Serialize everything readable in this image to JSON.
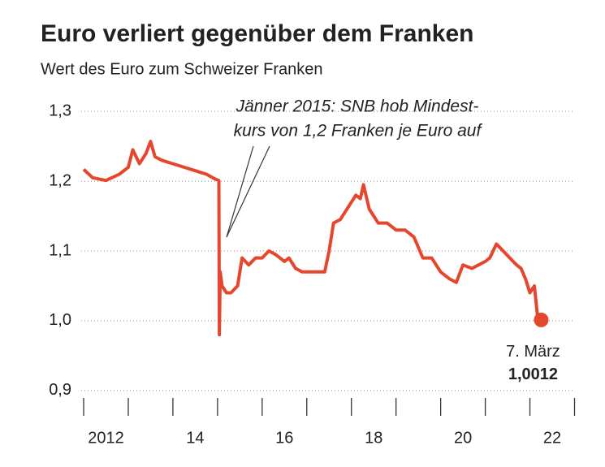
{
  "chart_data": {
    "type": "line",
    "title": "Euro verliert gegenüber dem Franken",
    "subtitle": "Wert des Euro zum Schweizer Franken",
    "annotation": [
      "Jänner 2015: SNB hob Mindest-",
      "kurs von 1,2 Franken je Euro auf"
    ],
    "end_label": "7. März",
    "end_value_label": "1,0012",
    "x": [
      2012.0,
      2012.2,
      2012.5,
      2012.8,
      2013.0,
      2013.1,
      2013.25,
      2013.4,
      2013.5,
      2013.6,
      2013.75,
      2014.0,
      2014.25,
      2014.5,
      2014.75,
      2014.95,
      2015.03,
      2015.04,
      2015.06,
      2015.1,
      2015.2,
      2015.3,
      2015.45,
      2015.55,
      2015.7,
      2015.85,
      2016.0,
      2016.15,
      2016.3,
      2016.5,
      2016.6,
      2016.75,
      2016.9,
      2017.0,
      2017.25,
      2017.4,
      2017.5,
      2017.6,
      2017.75,
      2017.9,
      2018.0,
      2018.1,
      2018.2,
      2018.27,
      2018.4,
      2018.5,
      2018.6,
      2018.8,
      2019.0,
      2019.2,
      2019.4,
      2019.6,
      2019.8,
      2020.0,
      2020.2,
      2020.35,
      2020.5,
      2020.7,
      2020.85,
      2021.0,
      2021.1,
      2021.25,
      2021.4,
      2021.55,
      2021.7,
      2021.8,
      2021.9,
      2022.0,
      2022.1,
      2022.18
    ],
    "series": [
      {
        "color": "#e4472d",
        "values": [
          1.217,
          1.205,
          1.201,
          1.21,
          1.22,
          1.245,
          1.225,
          1.24,
          1.257,
          1.235,
          1.23,
          1.225,
          1.22,
          1.215,
          1.21,
          1.203,
          1.201,
          0.98,
          1.07,
          1.05,
          1.04,
          1.04,
          1.05,
          1.09,
          1.08,
          1.09,
          1.09,
          1.1,
          1.095,
          1.085,
          1.09,
          1.075,
          1.07,
          1.07,
          1.07,
          1.07,
          1.1,
          1.14,
          1.145,
          1.16,
          1.17,
          1.18,
          1.175,
          1.195,
          1.16,
          1.15,
          1.14,
          1.14,
          1.13,
          1.13,
          1.12,
          1.09,
          1.09,
          1.07,
          1.06,
          1.055,
          1.08,
          1.075,
          1.08,
          1.085,
          1.09,
          1.11,
          1.1,
          1.09,
          1.08,
          1.075,
          1.06,
          1.04,
          1.05,
          1.0012
        ]
      }
    ],
    "xlim": [
      2012,
      2023.1
    ],
    "xtick_marks": [
      2012,
      2013,
      2014,
      2015,
      2016,
      2017,
      2018,
      2019,
      2020,
      2021,
      2022,
      2023
    ],
    "xticks": [
      {
        "value": 2012.5,
        "label": "2012"
      },
      {
        "value": 2014.5,
        "label": "14"
      },
      {
        "value": 2016.5,
        "label": "16"
      },
      {
        "value": 2018.5,
        "label": "18"
      },
      {
        "value": 2020.5,
        "label": "20"
      },
      {
        "value": 2022.5,
        "label": "22"
      }
    ],
    "ylim": [
      0.88,
      1.32
    ],
    "yticks": [
      {
        "value": 0.9,
        "label": "0,9"
      },
      {
        "value": 1.0,
        "label": "1,0"
      },
      {
        "value": 1.1,
        "label": "1,1"
      },
      {
        "value": 1.2,
        "label": "1,2"
      },
      {
        "value": 1.3,
        "label": "1,3"
      }
    ],
    "grid": true
  }
}
